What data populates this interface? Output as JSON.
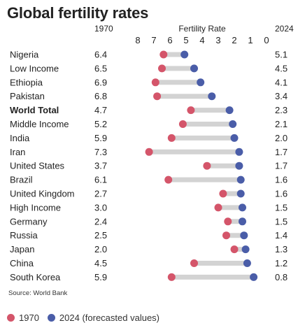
{
  "title": "Global fertility rates",
  "source": "Source: World Bank",
  "legend": {
    "y1970": "1970",
    "y2024": "2024 (forecasted values)"
  },
  "colors": {
    "y1970": "#d4556a",
    "y2024": "#4a5da8",
    "connector": "#d3d3d3"
  },
  "chart_data": {
    "type": "dumbbell",
    "title": "Global fertility rates",
    "xlabel": "Fertility Rate",
    "xlim": [
      8,
      0
    ],
    "x_ticks": [
      "8",
      "7",
      "6",
      "5",
      "4",
      "3",
      "2",
      "1",
      "0"
    ],
    "x_tick_values": [
      8,
      7,
      6,
      5,
      4,
      3,
      2,
      1,
      0
    ],
    "column_headers": {
      "left": "1970",
      "right": "2024"
    },
    "series": [
      {
        "name": "1970",
        "values": [
          6.4,
          6.5,
          6.9,
          6.8,
          4.7,
          5.2,
          5.9,
          7.3,
          3.7,
          6.1,
          2.7,
          3.0,
          2.4,
          2.5,
          2.0,
          4.5,
          5.9
        ]
      },
      {
        "name": "2024 (forecasted values)",
        "values": [
          5.1,
          4.5,
          4.1,
          3.4,
          2.3,
          2.1,
          2.0,
          1.7,
          1.7,
          1.6,
          1.6,
          1.5,
          1.5,
          1.4,
          1.3,
          1.2,
          0.8
        ]
      }
    ],
    "categories": [
      "Nigeria",
      "Low Income",
      "Ethiopia",
      "Pakistan",
      "World Total",
      "Middle Income",
      "India",
      "Iran",
      "United States",
      "Brazil",
      "United Kingdom",
      "High Income",
      "Germany",
      "Russia",
      "Japan",
      "China",
      "South Korea"
    ],
    "bold_categories": [
      "World Total"
    ],
    "labels_1970": [
      "6.4",
      "6.5",
      "6.9",
      "6.8",
      "4.7",
      "5.2",
      "5.9",
      "7.3",
      "3.7",
      "6.1",
      "2.7",
      "3.0",
      "2.4",
      "2.5",
      "2.0",
      "4.5",
      "5.9"
    ],
    "labels_2024": [
      "5.1",
      "4.5",
      "4.1",
      "3.4",
      "2.3",
      "2.1",
      "2.0",
      "1.7",
      "1.7",
      "1.6",
      "1.6",
      "1.5",
      "1.5",
      "1.4",
      "1.3",
      "1.2",
      "0.8"
    ]
  }
}
